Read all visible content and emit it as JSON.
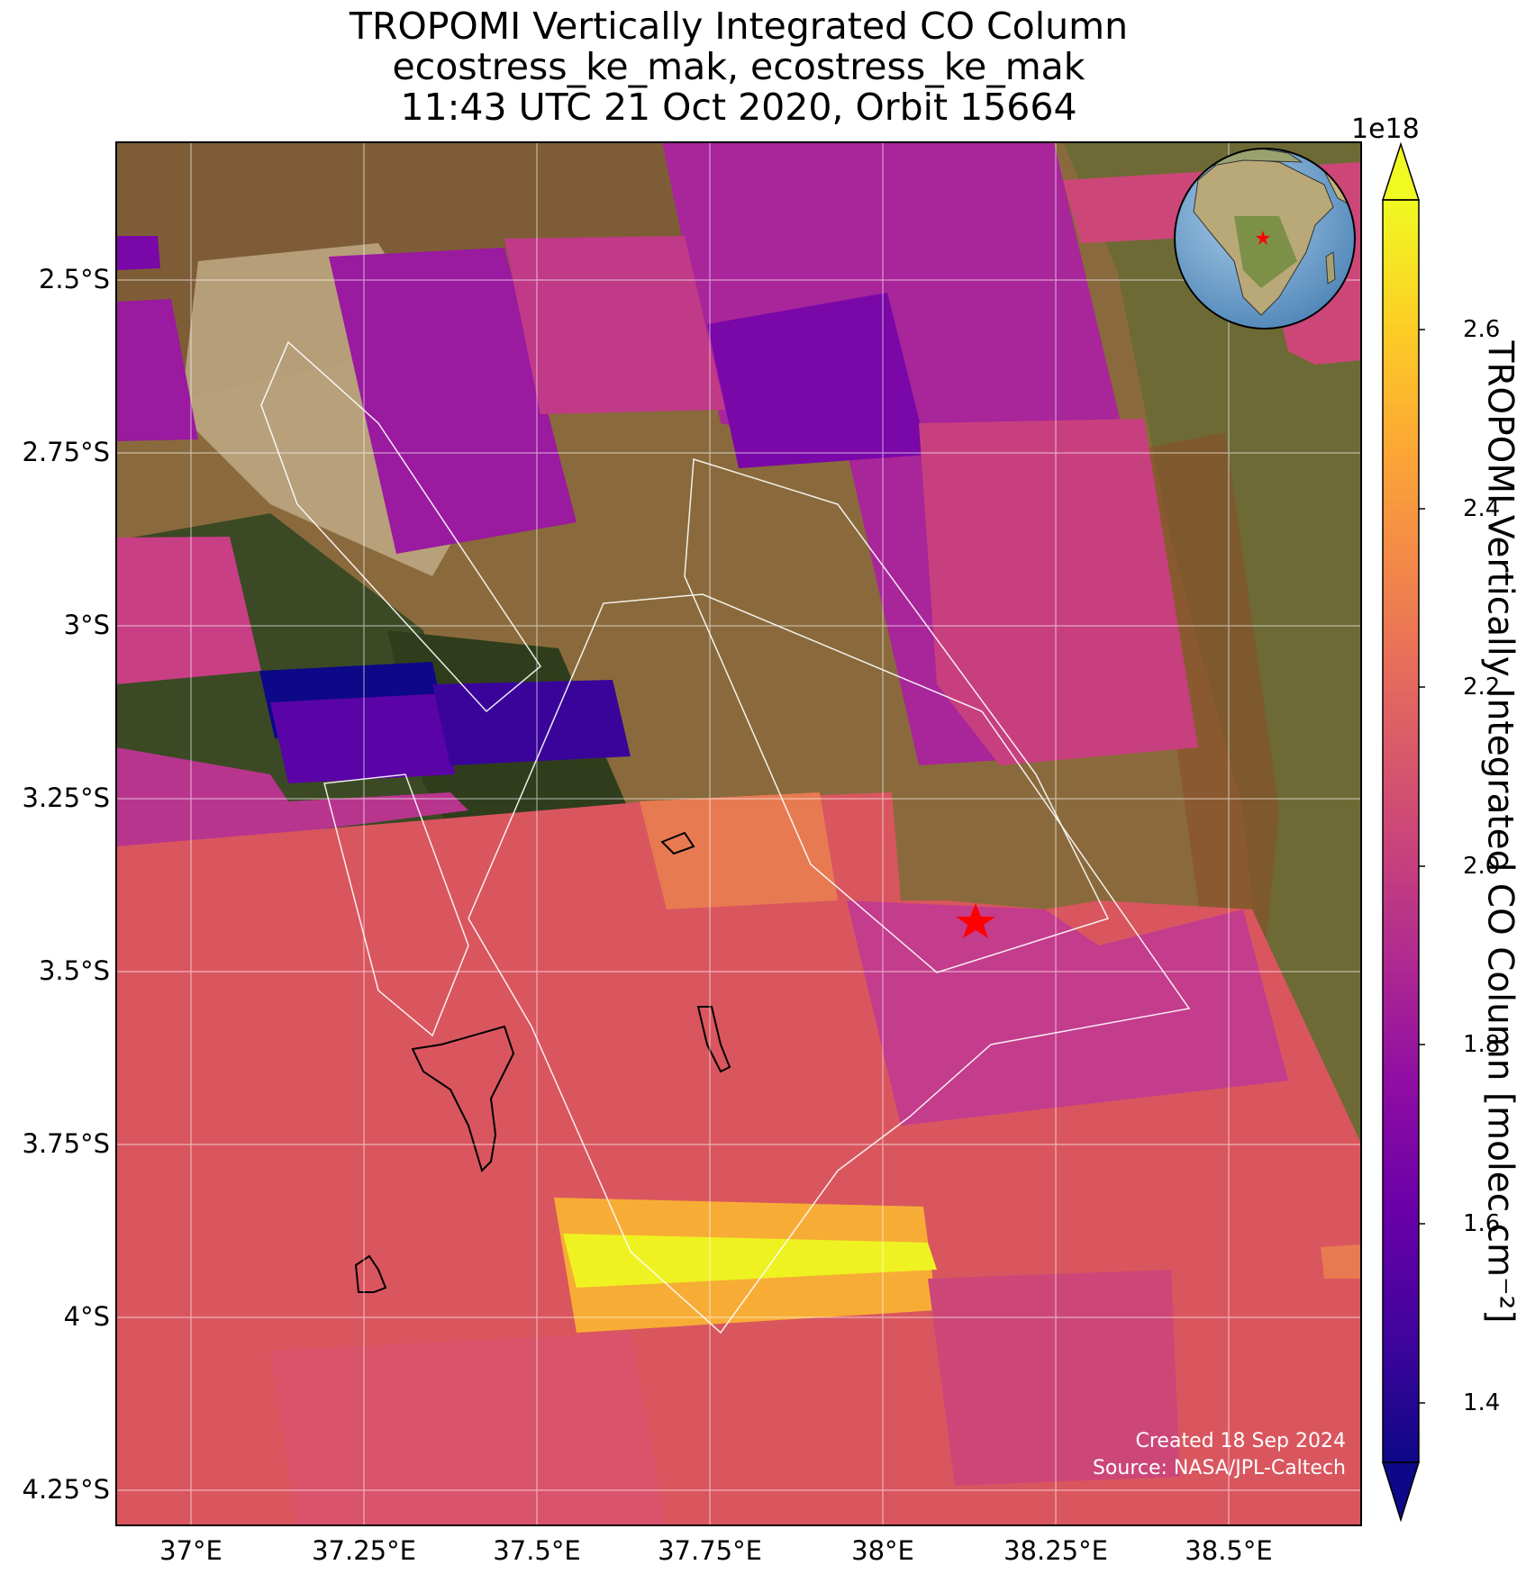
{
  "title_lines": [
    "TROPOMI Vertically Integrated CO Column",
    "ecostress_ke_mak, ecostress_ke_mak",
    "11:43 UTC 21 Oct 2020, Orbit 15664"
  ],
  "map": {
    "lon_range": [
      36.87,
      38.69
    ],
    "lat_range": [
      -4.31,
      -2.3
    ],
    "lon_ticks": [
      "37°E",
      "37.25°E",
      "37.5°E",
      "37.75°E",
      "38°E",
      "38.25°E",
      "38.5°E"
    ],
    "lat_ticks": [
      "2.5°S",
      "2.75°S",
      "3°S",
      "3.25°S",
      "3.5°S",
      "3.75°S",
      "4°S",
      "4.25°S"
    ],
    "target_marker": {
      "lon": 38.14,
      "lat": -3.43,
      "symbol": "red-star"
    },
    "inset_globe": {
      "content": "Africa orthographic view",
      "marker_symbol": "red-star"
    }
  },
  "colorbar": {
    "label": "TROPOMI Vertically Integrated CO Column [molec cm⁻²]",
    "multiplier": "1e18",
    "ticks": [
      "1.4",
      "1.6",
      "1.8",
      "2.0",
      "2.2",
      "2.4",
      "2.6"
    ],
    "range": [
      1.33,
      2.73
    ],
    "colormap": "plasma",
    "extend": "both"
  },
  "credits": {
    "created": "Created 18 Sep 2024",
    "source": "Source: NASA/JPL-Caltech"
  }
}
